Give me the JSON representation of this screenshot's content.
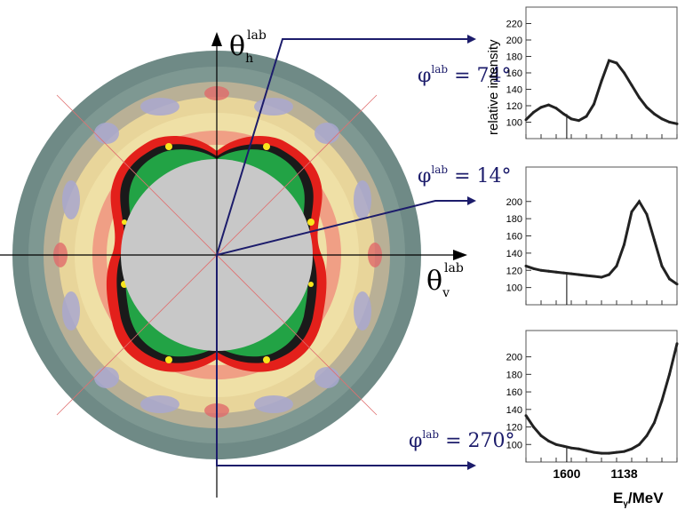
{
  "polar_plot": {
    "theta_h_symbol": "θ",
    "theta_h_sub": "h",
    "theta_h_sup": "lab",
    "theta_v_symbol": "θ",
    "theta_v_sub": "v",
    "theta_v_sup": "lab"
  },
  "annotations": [
    {
      "symbol": "φ",
      "sup": "lab",
      "value": " = 74°"
    },
    {
      "symbol": "φ",
      "sup": "lab",
      "value": " = 14°"
    },
    {
      "symbol": "φ",
      "sup": "lab",
      "value": " = 270°"
    }
  ],
  "colors": {
    "arrow": "#1c1c6b",
    "annotation_text": "#1c1c6b",
    "outer_ring": "#6f8a86",
    "center_disk": "#c8c8c8",
    "guide_lines": "#e07070",
    "histogram": "#222222"
  },
  "chart_data": [
    {
      "type": "line",
      "title": "",
      "ylabel": "relative intensity",
      "xlabel": "",
      "xlim": [
        0,
        100
      ],
      "ylim": [
        80,
        240
      ],
      "yticks": [
        100,
        120,
        140,
        160,
        180,
        200,
        220
      ],
      "x": [
        0,
        5,
        10,
        15,
        20,
        25,
        30,
        35,
        40,
        45,
        50,
        55,
        60,
        65,
        70,
        75,
        80,
        85,
        90,
        95,
        100
      ],
      "y": [
        103,
        112,
        118,
        121,
        117,
        110,
        104,
        102,
        107,
        122,
        150,
        175,
        172,
        160,
        145,
        130,
        118,
        110,
        104,
        100,
        98
      ]
    },
    {
      "type": "line",
      "title": "",
      "ylabel": "",
      "xlabel": "",
      "xlim": [
        0,
        100
      ],
      "ylim": [
        80,
        240
      ],
      "yticks": [
        100,
        120,
        140,
        160,
        180,
        200
      ],
      "x": [
        0,
        5,
        10,
        15,
        20,
        25,
        30,
        35,
        40,
        45,
        50,
        55,
        60,
        65,
        70,
        75,
        80,
        85,
        90,
        95,
        100
      ],
      "y": [
        125,
        122,
        120,
        119,
        118,
        117,
        116,
        115,
        114,
        113,
        112,
        115,
        125,
        150,
        188,
        200,
        185,
        155,
        125,
        110,
        104
      ]
    },
    {
      "type": "line",
      "title": "",
      "ylabel": "",
      "xlabel": "Eγ/MeV",
      "xlim": [
        0,
        100
      ],
      "ylim": [
        80,
        230
      ],
      "yticks": [
        100,
        120,
        140,
        160,
        180,
        200
      ],
      "xtick_labels": [
        {
          "x": 27,
          "label": "1600"
        },
        {
          "x": 65,
          "label": "1138"
        }
      ],
      "x": [
        0,
        5,
        10,
        15,
        20,
        25,
        30,
        35,
        40,
        45,
        50,
        55,
        60,
        65,
        70,
        75,
        80,
        85,
        90,
        95,
        100
      ],
      "y": [
        133,
        120,
        110,
        104,
        100,
        98,
        96,
        95,
        93,
        91,
        90,
        90,
        91,
        92,
        95,
        100,
        110,
        125,
        150,
        180,
        215
      ]
    }
  ],
  "xlabel_parts": {
    "main": "E",
    "sub": "γ",
    "rest": "/MeV"
  }
}
